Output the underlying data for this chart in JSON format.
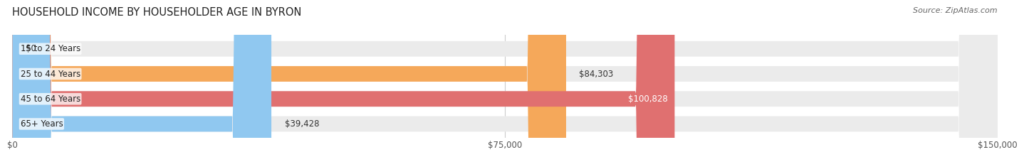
{
  "title": "HOUSEHOLD INCOME BY HOUSEHOLDER AGE IN BYRON",
  "source": "Source: ZipAtlas.com",
  "categories": [
    "15 to 24 Years",
    "25 to 44 Years",
    "45 to 64 Years",
    "65+ Years"
  ],
  "values": [
    0,
    84303,
    100828,
    39428
  ],
  "bar_colors": [
    "#f48fb1",
    "#f5a85a",
    "#e07070",
    "#90c8f0"
  ],
  "bar_bg_color": "#ebebeb",
  "value_labels": [
    "$0",
    "$84,303",
    "$100,828",
    "$39,428"
  ],
  "xlim": [
    0,
    150000
  ],
  "xtick_values": [
    0,
    75000,
    150000
  ],
  "xtick_labels": [
    "$0",
    "$75,000",
    "$150,000"
  ],
  "fig_bg_color": "#ffffff",
  "bar_height": 0.62,
  "title_fontsize": 10.5,
  "label_fontsize": 8.5,
  "value_fontsize": 8.5,
  "source_fontsize": 8,
  "value_label_inside_threshold": 95000
}
